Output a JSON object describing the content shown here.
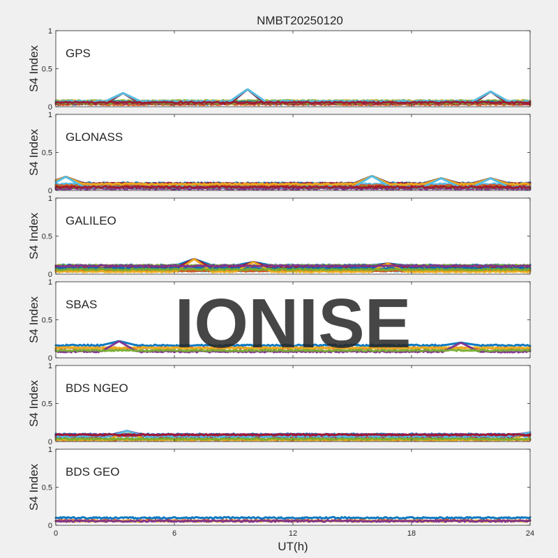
{
  "figure_title": "NMBT20250120",
  "watermark": "IONISE",
  "colors": {
    "axes_bg": "#ffffff",
    "figure_bg": "#f0f0f0",
    "axis_line": "#262626",
    "watermark": "#e6e6e6",
    "palette": [
      "#0072bd",
      "#d95319",
      "#edb120",
      "#7e2f8e",
      "#77ac30",
      "#4dbeee",
      "#a2142f"
    ]
  },
  "chart_data": [
    {
      "type": "scatter",
      "title": "",
      "panel_label": "GPS",
      "xlabel": "",
      "ylabel": "S4 Index",
      "xlim": [
        0,
        24
      ],
      "ylim": [
        0,
        1
      ],
      "xticks": [
        0,
        6,
        12,
        18,
        24
      ],
      "xtick_labels": [],
      "yticks": [
        0,
        0.5,
        1
      ],
      "grid": false,
      "legend": "none",
      "series_summary": {
        "count": 14,
        "baseline": [
          0.03,
          0.08
        ],
        "peak_hints": [
          [
            3.4,
            0.18
          ],
          [
            9.7,
            0.23
          ],
          [
            22.0,
            0.2
          ]
        ]
      }
    },
    {
      "type": "scatter",
      "title": "",
      "panel_label": "GLONASS",
      "xlabel": "",
      "ylabel": "S4 Index",
      "xlim": [
        0,
        24
      ],
      "ylim": [
        0,
        1
      ],
      "xticks": [
        0,
        6,
        12,
        18,
        24
      ],
      "xtick_labels": [],
      "yticks": [
        0,
        0.5,
        1
      ],
      "grid": false,
      "legend": "none",
      "series_summary": {
        "count": 14,
        "baseline": [
          0.02,
          0.1
        ],
        "peak_hints": [
          [
            0.5,
            0.18
          ],
          [
            16.0,
            0.19
          ],
          [
            19.5,
            0.16
          ],
          [
            22.0,
            0.16
          ]
        ]
      }
    },
    {
      "type": "scatter",
      "title": "",
      "panel_label": "GALILEO",
      "xlabel": "",
      "ylabel": "S4 Index",
      "xlim": [
        0,
        24
      ],
      "ylim": [
        0,
        1
      ],
      "xticks": [
        0,
        6,
        12,
        18,
        24
      ],
      "xtick_labels": [],
      "yticks": [
        0,
        0.5,
        1
      ],
      "grid": false,
      "legend": "none",
      "series_summary": {
        "count": 12,
        "baseline": [
          0.03,
          0.12
        ],
        "peak_hints": [
          [
            7.0,
            0.2
          ],
          [
            10.0,
            0.16
          ],
          [
            16.8,
            0.14
          ]
        ]
      }
    },
    {
      "type": "scatter",
      "title": "",
      "panel_label": "SBAS",
      "xlabel": "",
      "ylabel": "S4 Index",
      "xlim": [
        0,
        24
      ],
      "ylim": [
        0,
        1
      ],
      "xticks": [
        0,
        6,
        12,
        18,
        24
      ],
      "xtick_labels": [],
      "yticks": [
        0,
        0.5,
        1
      ],
      "grid": false,
      "legend": "none",
      "series_summary": {
        "count": 5,
        "baseline": [
          0.06,
          0.18
        ],
        "peak_hints": [
          [
            3.2,
            0.22
          ],
          [
            20.5,
            0.2
          ]
        ]
      }
    },
    {
      "type": "scatter",
      "title": "",
      "panel_label": "BDS NGEO",
      "xlabel": "",
      "ylabel": "S4 Index",
      "xlim": [
        0,
        24
      ],
      "ylim": [
        0,
        1
      ],
      "xticks": [
        0,
        6,
        12,
        18,
        24
      ],
      "xtick_labels": [],
      "yticks": [
        0,
        0.5,
        1
      ],
      "grid": false,
      "legend": "none",
      "series_summary": {
        "count": 14,
        "baseline": [
          0.02,
          0.1
        ],
        "peak_hints": [
          [
            3.6,
            0.14
          ],
          [
            24.0,
            0.12
          ]
        ]
      }
    },
    {
      "type": "scatter",
      "title": "",
      "panel_label": "BDS GEO",
      "xlabel": "UT(h)",
      "ylabel": "S4 Index",
      "xlim": [
        0,
        24
      ],
      "ylim": [
        0,
        1
      ],
      "xticks": [
        0,
        6,
        12,
        18,
        24
      ],
      "xtick_labels": [
        "0",
        "6",
        "12",
        "18",
        "24"
      ],
      "yticks": [
        0,
        0.5,
        1
      ],
      "grid": false,
      "legend": "none",
      "series_summary": {
        "count": 4,
        "baseline": [
          0.05,
          0.1
        ],
        "peak_hints": []
      }
    }
  ]
}
